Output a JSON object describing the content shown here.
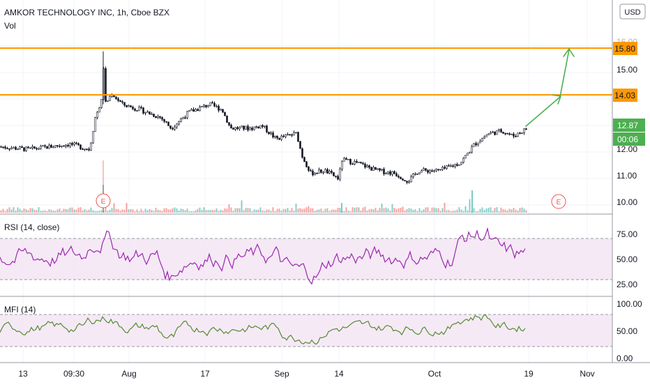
{
  "header": {
    "symbol_title": "AMKOR TECHNOLOGY INC, 1h, Cboe BZX",
    "vol_label": "Vol",
    "currency_button": "USD"
  },
  "colors": {
    "up": "#26a69a",
    "down": "#ef5350",
    "candle": "#131722",
    "level_line": "#ff9800",
    "arrow": "#4caf50",
    "rsi_line": "#9c27b0",
    "mfi_line": "#558b2f",
    "band_fill": "#f3e5f5",
    "last_price_bg": "#4caf50",
    "earnings": "#ef5350"
  },
  "price_axis": {
    "ticks": [
      "16.00",
      "15.00",
      "12.00",
      "11.00",
      "10.00"
    ],
    "levels": [
      {
        "label": "15.80",
        "value": 15.8
      },
      {
        "label": "14.03",
        "value": 14.03
      }
    ],
    "last_price": "12.87",
    "countdown": "00:06"
  },
  "rsi": {
    "title": "RSI (14, close)",
    "ticks": [
      "75.00",
      "50.00",
      "25.00"
    ],
    "upper_band": 70,
    "lower_band": 30
  },
  "mfi": {
    "title": "MFI (14)",
    "ticks": [
      "100.00",
      "50.00",
      "0.00"
    ],
    "upper_band": 80,
    "lower_band": 20
  },
  "time_axis": {
    "labels": [
      "13",
      "09:30",
      "Aug",
      "17",
      "Sep",
      "14",
      "Oct",
      "19",
      "Nov"
    ]
  },
  "earnings_marker": "E",
  "chart_data": {
    "type": "line",
    "title": "AMKOR TECHNOLOGY INC, 1h, Cboe BZX",
    "x": [
      "13",
      "09:30",
      "Aug",
      "17",
      "Sep",
      "14",
      "Oct",
      "19",
      "Nov"
    ],
    "price_path": [
      {
        "x": "13",
        "y": 12.2
      },
      {
        "x": "09:30",
        "y": 12.3
      },
      {
        "x": "09:30",
        "y": 13.8
      },
      {
        "x": "09:30",
        "y": 14.3
      },
      {
        "x": "Aug",
        "y": 13.6
      },
      {
        "x": "17",
        "y": 13.9
      },
      {
        "x": "17",
        "y": 13.0
      },
      {
        "x": "Sep",
        "y": 12.3
      },
      {
        "x": "Sep",
        "y": 11.2
      },
      {
        "x": "14",
        "y": 11.5
      },
      {
        "x": "14",
        "y": 11.0
      },
      {
        "x": "Oct",
        "y": 11.2
      },
      {
        "x": "Oct",
        "y": 12.4
      },
      {
        "x": "19",
        "y": 12.87
      }
    ],
    "levels": [
      15.8,
      14.03
    ],
    "last_price": 12.87,
    "projection": [
      12.87,
      14.03,
      15.8
    ],
    "y_ticks": [
      16,
      15,
      12,
      11,
      10
    ],
    "rsi_ticks": [
      75,
      50,
      25
    ],
    "mfi_ticks": [
      100,
      50,
      0
    ]
  }
}
